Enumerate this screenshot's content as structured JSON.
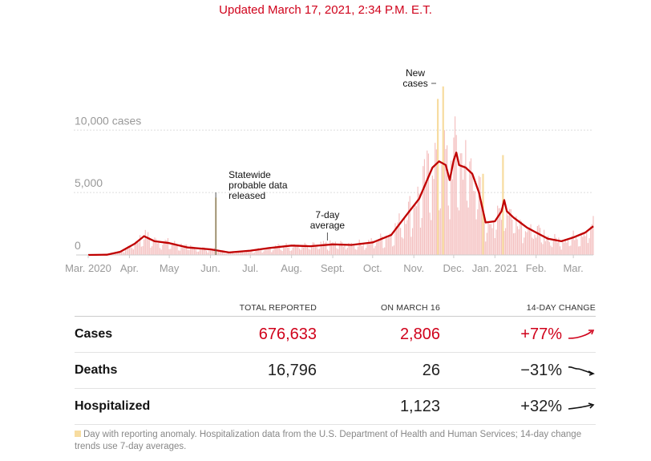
{
  "header": {
    "updated": "Updated March 17, 2021, 2:34 P.M. E.T."
  },
  "chart_data": {
    "type": "bar",
    "overlay": "line",
    "ylim": [
      0,
      14000
    ],
    "yticks": [
      {
        "value": 0,
        "label": "0"
      },
      {
        "value": 5000,
        "label": "5,000"
      },
      {
        "value": 10000,
        "label": "10,000 cases"
      }
    ],
    "xticks": [
      {
        "date": "2020-03-01",
        "label": "Mar. 2020"
      },
      {
        "date": "2020-04-01",
        "label": "Apr."
      },
      {
        "date": "2020-05-01",
        "label": "May"
      },
      {
        "date": "2020-06-01",
        "label": "Jun."
      },
      {
        "date": "2020-07-01",
        "label": "Jul."
      },
      {
        "date": "2020-08-01",
        "label": "Aug."
      },
      {
        "date": "2020-09-01",
        "label": "Sept."
      },
      {
        "date": "2020-10-01",
        "label": "Oct."
      },
      {
        "date": "2020-11-01",
        "label": "Nov."
      },
      {
        "date": "2020-12-01",
        "label": "Dec."
      },
      {
        "date": "2021-01-01",
        "label": "Jan. 2021"
      },
      {
        "date": "2021-02-01",
        "label": "Feb."
      },
      {
        "date": "2021-03-01",
        "label": "Mar."
      }
    ],
    "date_range": [
      "2020-03-01",
      "2021-03-16"
    ],
    "seven_day_average": [
      {
        "date": "2020-03-01",
        "value": 0
      },
      {
        "date": "2020-03-15",
        "value": 20
      },
      {
        "date": "2020-03-25",
        "value": 250
      },
      {
        "date": "2020-04-05",
        "value": 900
      },
      {
        "date": "2020-04-12",
        "value": 1500
      },
      {
        "date": "2020-04-20",
        "value": 1100
      },
      {
        "date": "2020-05-01",
        "value": 950
      },
      {
        "date": "2020-05-15",
        "value": 600
      },
      {
        "date": "2020-06-01",
        "value": 450
      },
      {
        "date": "2020-06-15",
        "value": 200
      },
      {
        "date": "2020-07-01",
        "value": 350
      },
      {
        "date": "2020-07-15",
        "value": 550
      },
      {
        "date": "2020-08-01",
        "value": 750
      },
      {
        "date": "2020-08-15",
        "value": 700
      },
      {
        "date": "2020-09-01",
        "value": 850
      },
      {
        "date": "2020-09-15",
        "value": 800
      },
      {
        "date": "2020-10-01",
        "value": 1000
      },
      {
        "date": "2020-10-15",
        "value": 1600
      },
      {
        "date": "2020-10-25",
        "value": 3000
      },
      {
        "date": "2020-11-05",
        "value": 4500
      },
      {
        "date": "2020-11-15",
        "value": 7000
      },
      {
        "date": "2020-11-20",
        "value": 7500
      },
      {
        "date": "2020-11-25",
        "value": 7200
      },
      {
        "date": "2020-11-28",
        "value": 6000
      },
      {
        "date": "2020-12-01",
        "value": 7600
      },
      {
        "date": "2020-12-03",
        "value": 8200
      },
      {
        "date": "2020-12-05",
        "value": 7200
      },
      {
        "date": "2020-12-10",
        "value": 7000
      },
      {
        "date": "2020-12-15",
        "value": 6500
      },
      {
        "date": "2020-12-20",
        "value": 5000
      },
      {
        "date": "2020-12-25",
        "value": 2600
      },
      {
        "date": "2021-01-01",
        "value": 2700
      },
      {
        "date": "2021-01-06",
        "value": 3500
      },
      {
        "date": "2021-01-08",
        "value": 4400
      },
      {
        "date": "2021-01-10",
        "value": 3500
      },
      {
        "date": "2021-01-15",
        "value": 3000
      },
      {
        "date": "2021-01-25",
        "value": 2200
      },
      {
        "date": "2021-02-01",
        "value": 1800
      },
      {
        "date": "2021-02-10",
        "value": 1300
      },
      {
        "date": "2021-02-20",
        "value": 1100
      },
      {
        "date": "2021-03-01",
        "value": 1400
      },
      {
        "date": "2021-03-10",
        "value": 1800
      },
      {
        "date": "2021-03-16",
        "value": 2300
      }
    ],
    "anomaly_days": [
      {
        "date": "2020-06-05",
        "value": 4600
      },
      {
        "date": "2020-11-19",
        "value": 12500
      },
      {
        "date": "2020-11-23",
        "value": 13500
      },
      {
        "date": "2020-12-23",
        "value": 6500
      },
      {
        "date": "2021-01-07",
        "value": 8000
      }
    ],
    "annotations": [
      {
        "id": "statewide",
        "date": "2020-06-05",
        "lines": [
          "Statewide",
          "probable data",
          "released"
        ]
      },
      {
        "id": "seven-day",
        "date": "2020-08-28",
        "lines": [
          "7-day",
          "average"
        ]
      },
      {
        "id": "new-cases",
        "date": "2020-11-19",
        "lines": [
          "New",
          "cases"
        ]
      }
    ],
    "colors": {
      "line": "#c00000",
      "bars": "#f4c0c0",
      "anomaly": "#f7dca0",
      "grid": "#dddddd",
      "axis": "#cccccc"
    }
  },
  "table": {
    "headers": {
      "total": "TOTAL REPORTED",
      "day": "ON MARCH 16",
      "change": "14-DAY CHANGE"
    },
    "rows": [
      {
        "metric": "Cases",
        "total": "676,633",
        "day": "2,806",
        "change": "+77%",
        "trend": "up-strong",
        "color": "#d0021b"
      },
      {
        "metric": "Deaths",
        "total": "16,796",
        "day": "26",
        "change": "−31%",
        "trend": "down",
        "color": "#121212"
      },
      {
        "metric": "Hospitalized",
        "total": "",
        "day": "1,123",
        "change": "+32%",
        "trend": "up",
        "color": "#121212"
      }
    ]
  },
  "footnote": "Day with reporting anomaly. Hospitalization data from the U.S. Department of Health and Human Services; 14-day change trends use 7-day averages."
}
